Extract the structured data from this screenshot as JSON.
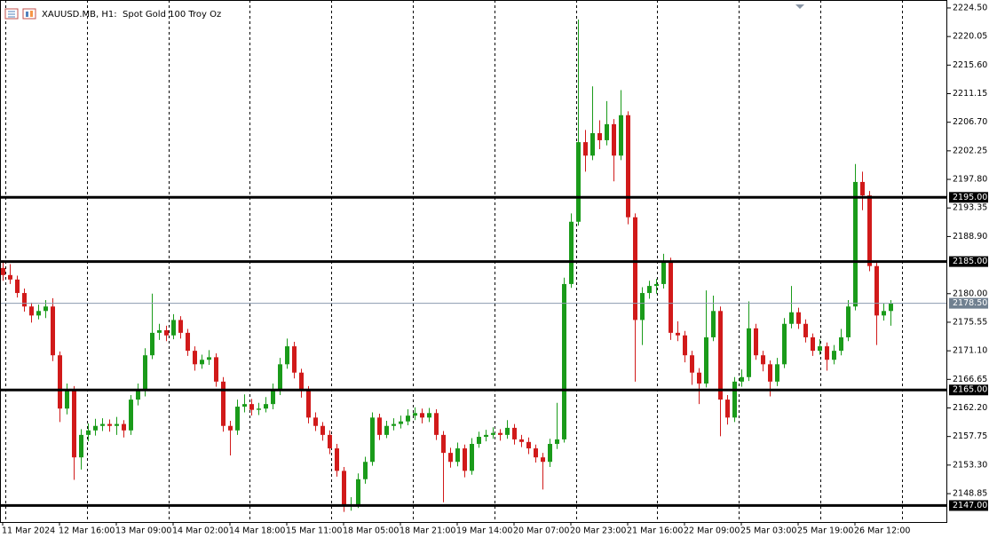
{
  "chart_data": {
    "type": "candlestick",
    "title": "XAUUSD.MB, H1:  Spot Gold 100 Troy Oz",
    "up_color": "#1a9b1a",
    "down_color": "#d11a1a",
    "ylim": [
      2144.43,
      2225.74
    ],
    "yticks": [
      {
        "value": 2224.5,
        "label": "2224.50"
      },
      {
        "value": 2220.05,
        "label": "2220.05"
      },
      {
        "value": 2215.6,
        "label": "2215.60"
      },
      {
        "value": 2211.15,
        "label": "2211.15"
      },
      {
        "value": 2206.7,
        "label": "2206.70"
      },
      {
        "value": 2202.25,
        "label": "2202.25"
      },
      {
        "value": 2197.8,
        "label": "2197.80"
      },
      {
        "value": 2193.35,
        "label": "2193.35"
      },
      {
        "value": 2188.9,
        "label": "2188.90"
      },
      {
        "value": 2180,
        "label": "2180.00"
      },
      {
        "value": 2175.55,
        "label": "2175.55"
      },
      {
        "value": 2171.1,
        "label": "2171.10"
      },
      {
        "value": 2166.65,
        "label": "2166.65"
      },
      {
        "value": 2162.2,
        "label": "2162.20"
      },
      {
        "value": 2157.75,
        "label": "2157.75"
      },
      {
        "value": 2153.3,
        "label": "2153.30"
      },
      {
        "value": 2148.85,
        "label": "2148.85"
      }
    ],
    "levels": [
      {
        "value": 2195,
        "label": "2195.00"
      },
      {
        "value": 2185,
        "label": "2185.00"
      },
      {
        "value": 2165,
        "label": "2165.00"
      },
      {
        "value": 2147,
        "label": "2147.00"
      }
    ],
    "current_price": {
      "value": 2178.5,
      "label": "2178.50"
    },
    "categories": [
      "11 Mar 2024",
      null,
      null,
      null,
      null,
      null,
      null,
      null,
      "12 Mar 16:00",
      null,
      null,
      null,
      null,
      null,
      null,
      null,
      "13 Mar 09:00",
      null,
      null,
      null,
      null,
      null,
      null,
      null,
      "14 Mar 02:00",
      null,
      null,
      null,
      null,
      null,
      null,
      null,
      "14 Mar 18:00",
      null,
      null,
      null,
      null,
      null,
      null,
      null,
      "15 Mar 11:00",
      null,
      null,
      null,
      null,
      null,
      null,
      null,
      "18 Mar 05:00",
      null,
      null,
      null,
      null,
      null,
      null,
      null,
      "18 Mar 21:00",
      null,
      null,
      null,
      null,
      null,
      null,
      null,
      "19 Mar 14:00",
      null,
      null,
      null,
      null,
      null,
      null,
      null,
      "20 Mar 07:00",
      null,
      null,
      null,
      null,
      null,
      null,
      null,
      "20 Mar 23:00",
      null,
      null,
      null,
      null,
      null,
      null,
      null,
      "21 Mar 16:00",
      null,
      null,
      null,
      null,
      null,
      null,
      null,
      "22 Mar 09:00",
      null,
      null,
      null,
      null,
      null,
      null,
      null,
      "25 Mar 03:00",
      null,
      null,
      null,
      null,
      null,
      null,
      null,
      "25 Mar 19:00",
      null,
      null,
      null,
      null,
      null,
      null,
      null,
      "26 Mar 12:00",
      null,
      null,
      null,
      null,
      null
    ],
    "ohlc": [
      [
        2184.0,
        2185.2,
        2182.0,
        2182.9
      ],
      [
        2182.9,
        2184.6,
        2181.5,
        2182.2
      ],
      [
        2182.2,
        2182.8,
        2179.4,
        2180.1
      ],
      [
        2180.1,
        2180.8,
        2177.2,
        2178.0
      ],
      [
        2178.0,
        2178.6,
        2175.5,
        2176.6
      ],
      [
        2176.6,
        2178.3,
        2176.0,
        2177.3
      ],
      [
        2177.3,
        2179.0,
        2176.2,
        2178.0
      ],
      [
        2178.0,
        2179.3,
        2169.5,
        2170.4
      ],
      [
        2170.4,
        2171.0,
        2160.0,
        2162.1
      ],
      [
        2162.1,
        2166.0,
        2161.2,
        2164.9
      ],
      [
        2164.9,
        2165.6,
        2151.0,
        2154.5
      ],
      [
        2154.5,
        2158.9,
        2152.6,
        2158.0
      ],
      [
        2158.0,
        2159.8,
        2157.0,
        2158.7
      ],
      [
        2158.7,
        2160.5,
        2157.9,
        2159.4
      ],
      [
        2159.4,
        2160.6,
        2158.6,
        2159.7
      ],
      [
        2159.7,
        2160.4,
        2158.5,
        2159.4
      ],
      [
        2159.4,
        2160.8,
        2158.0,
        2159.7
      ],
      [
        2159.7,
        2160.3,
        2157.6,
        2158.7
      ],
      [
        2158.7,
        2164.2,
        2158.0,
        2163.5
      ],
      [
        2163.5,
        2166.0,
        2162.6,
        2164.9
      ],
      [
        2164.9,
        2171.5,
        2164.0,
        2170.4
      ],
      [
        2170.4,
        2180.0,
        2169.8,
        2173.9
      ],
      [
        2173.9,
        2175.3,
        2172.8,
        2174.3
      ],
      [
        2174.3,
        2175.0,
        2172.6,
        2173.5
      ],
      [
        2173.5,
        2176.8,
        2172.9,
        2175.9
      ],
      [
        2175.9,
        2176.5,
        2173.0,
        2173.9
      ],
      [
        2173.9,
        2174.5,
        2170.3,
        2171.1
      ],
      [
        2171.1,
        2171.8,
        2168.0,
        2169.0
      ],
      [
        2169.0,
        2170.5,
        2168.3,
        2169.7
      ],
      [
        2169.7,
        2171.2,
        2168.9,
        2170.1
      ],
      [
        2170.1,
        2170.7,
        2165.5,
        2166.3
      ],
      [
        2166.3,
        2167.0,
        2158.5,
        2159.4
      ],
      [
        2159.4,
        2160.2,
        2154.8,
        2158.7
      ],
      [
        2158.7,
        2163.5,
        2158.0,
        2162.4
      ],
      [
        2162.4,
        2164.3,
        2161.5,
        2162.8
      ],
      [
        2162.8,
        2163.6,
        2161.0,
        2161.9
      ],
      [
        2161.9,
        2163.0,
        2161.1,
        2162.1
      ],
      [
        2162.1,
        2163.9,
        2161.5,
        2162.8
      ],
      [
        2162.8,
        2166.0,
        2162.0,
        2164.9
      ],
      [
        2164.9,
        2170.0,
        2164.2,
        2169.0
      ],
      [
        2169.0,
        2173.0,
        2168.3,
        2171.8
      ],
      [
        2171.8,
        2172.5,
        2166.8,
        2167.7
      ],
      [
        2167.7,
        2168.3,
        2163.8,
        2164.9
      ],
      [
        2164.9,
        2165.6,
        2159.8,
        2160.7
      ],
      [
        2160.7,
        2161.5,
        2158.6,
        2159.4
      ],
      [
        2159.4,
        2160.0,
        2157.1,
        2158.0
      ],
      [
        2158.0,
        2158.7,
        2155.0,
        2155.9
      ],
      [
        2155.9,
        2156.6,
        2151.5,
        2152.4
      ],
      [
        2152.4,
        2153.0,
        2146.0,
        2146.9
      ],
      [
        2146.9,
        2148.3,
        2146.2,
        2147.2
      ],
      [
        2147.2,
        2152.0,
        2146.6,
        2151.1
      ],
      [
        2151.1,
        2154.6,
        2150.4,
        2153.8
      ],
      [
        2153.8,
        2161.5,
        2153.2,
        2160.7
      ],
      [
        2160.7,
        2161.3,
        2157.2,
        2158.0
      ],
      [
        2158.0,
        2160.2,
        2157.5,
        2159.4
      ],
      [
        2159.4,
        2160.6,
        2158.7,
        2159.7
      ],
      [
        2159.7,
        2161.0,
        2159.0,
        2160.1
      ],
      [
        2160.1,
        2162.0,
        2159.5,
        2161.0
      ],
      [
        2161.0,
        2162.3,
        2160.3,
        2161.4
      ],
      [
        2161.4,
        2162.1,
        2159.8,
        2160.7
      ],
      [
        2160.7,
        2162.2,
        2160.0,
        2161.4
      ],
      [
        2161.4,
        2162.0,
        2157.2,
        2158.0
      ],
      [
        2158.0,
        2158.6,
        2147.5,
        2155.2
      ],
      [
        2155.2,
        2156.0,
        2152.9,
        2153.8
      ],
      [
        2153.8,
        2156.8,
        2153.1,
        2155.9
      ],
      [
        2155.9,
        2156.5,
        2151.4,
        2152.4
      ],
      [
        2152.4,
        2157.5,
        2151.8,
        2156.6
      ],
      [
        2156.6,
        2158.5,
        2156.0,
        2157.7
      ],
      [
        2157.7,
        2158.8,
        2157.0,
        2158.0
      ],
      [
        2158.0,
        2159.2,
        2157.4,
        2158.3
      ],
      [
        2158.3,
        2158.9,
        2157.1,
        2158.0
      ],
      [
        2158.0,
        2160.3,
        2157.4,
        2159.1
      ],
      [
        2159.1,
        2159.7,
        2156.5,
        2157.3
      ],
      [
        2157.3,
        2158.0,
        2156.1,
        2156.9
      ],
      [
        2156.9,
        2157.6,
        2155.0,
        2155.9
      ],
      [
        2155.9,
        2156.5,
        2153.7,
        2154.5
      ],
      [
        2154.5,
        2155.2,
        2149.5,
        2153.8
      ],
      [
        2153.8,
        2157.4,
        2153.0,
        2156.6
      ],
      [
        2156.6,
        2163.0,
        2155.8,
        2157.3
      ],
      [
        2157.3,
        2182.5,
        2156.8,
        2181.5
      ],
      [
        2181.5,
        2192.5,
        2180.9,
        2191.2
      ],
      [
        2191.2,
        2222.7,
        2190.6,
        2203.6
      ],
      [
        2203.6,
        2205.5,
        2199.0,
        2201.5
      ],
      [
        2201.5,
        2212.3,
        2200.8,
        2205.0
      ],
      [
        2205.0,
        2207.0,
        2202.5,
        2203.9
      ],
      [
        2203.9,
        2210.0,
        2203.1,
        2206.4
      ],
      [
        2206.4,
        2207.2,
        2197.5,
        2201.5
      ],
      [
        2201.5,
        2211.7,
        2200.8,
        2207.8
      ],
      [
        2207.8,
        2208.4,
        2190.8,
        2191.9
      ],
      [
        2191.9,
        2192.5,
        2166.3,
        2175.9
      ],
      [
        2175.9,
        2181.0,
        2172.0,
        2180.1
      ],
      [
        2180.1,
        2182.0,
        2179.2,
        2181.2
      ],
      [
        2181.2,
        2182.3,
        2180.0,
        2181.5
      ],
      [
        2181.5,
        2186.2,
        2180.8,
        2185.0
      ],
      [
        2185.0,
        2185.6,
        2172.8,
        2173.9
      ],
      [
        2173.9,
        2175.7,
        2172.6,
        2173.5
      ],
      [
        2173.5,
        2174.2,
        2169.3,
        2170.4
      ],
      [
        2170.4,
        2171.1,
        2165.8,
        2167.7
      ],
      [
        2167.7,
        2168.4,
        2162.8,
        2166.0
      ],
      [
        2166.0,
        2180.5,
        2165.4,
        2173.2
      ],
      [
        2173.2,
        2179.7,
        2172.6,
        2177.3
      ],
      [
        2177.3,
        2178.0,
        2157.8,
        2163.5
      ],
      [
        2163.5,
        2164.2,
        2159.6,
        2160.7
      ],
      [
        2160.7,
        2167.0,
        2160.0,
        2166.3
      ],
      [
        2166.3,
        2168.2,
        2165.5,
        2167.0
      ],
      [
        2167.0,
        2178.8,
        2166.4,
        2174.6
      ],
      [
        2174.6,
        2175.3,
        2169.7,
        2170.4
      ],
      [
        2170.4,
        2171.1,
        2167.9,
        2169.0
      ],
      [
        2169.0,
        2169.6,
        2164.0,
        2166.3
      ],
      [
        2166.3,
        2170.0,
        2165.6,
        2169.0
      ],
      [
        2169.0,
        2176.2,
        2168.4,
        2175.3
      ],
      [
        2175.3,
        2181.2,
        2174.6,
        2177.1
      ],
      [
        2177.1,
        2177.8,
        2174.5,
        2175.3
      ],
      [
        2175.3,
        2176.0,
        2172.4,
        2173.2
      ],
      [
        2173.2,
        2173.8,
        2170.3,
        2171.1
      ],
      [
        2171.1,
        2172.9,
        2170.5,
        2171.8
      ],
      [
        2171.8,
        2172.4,
        2168.0,
        2169.7
      ],
      [
        2169.7,
        2172.0,
        2169.0,
        2171.1
      ],
      [
        2171.1,
        2174.5,
        2170.4,
        2173.2
      ],
      [
        2173.2,
        2179.0,
        2172.6,
        2178.0
      ],
      [
        2178.0,
        2200.2,
        2177.4,
        2197.4
      ],
      [
        2197.4,
        2199.0,
        2193.0,
        2195.3
      ],
      [
        2195.3,
        2196.0,
        2183.5,
        2184.3
      ],
      [
        2184.3,
        2185.0,
        2172.0,
        2176.6
      ],
      [
        2176.6,
        2178.5,
        2175.8,
        2177.3
      ],
      [
        2177.3,
        2179.0,
        2175.0,
        2178.5
      ]
    ]
  }
}
